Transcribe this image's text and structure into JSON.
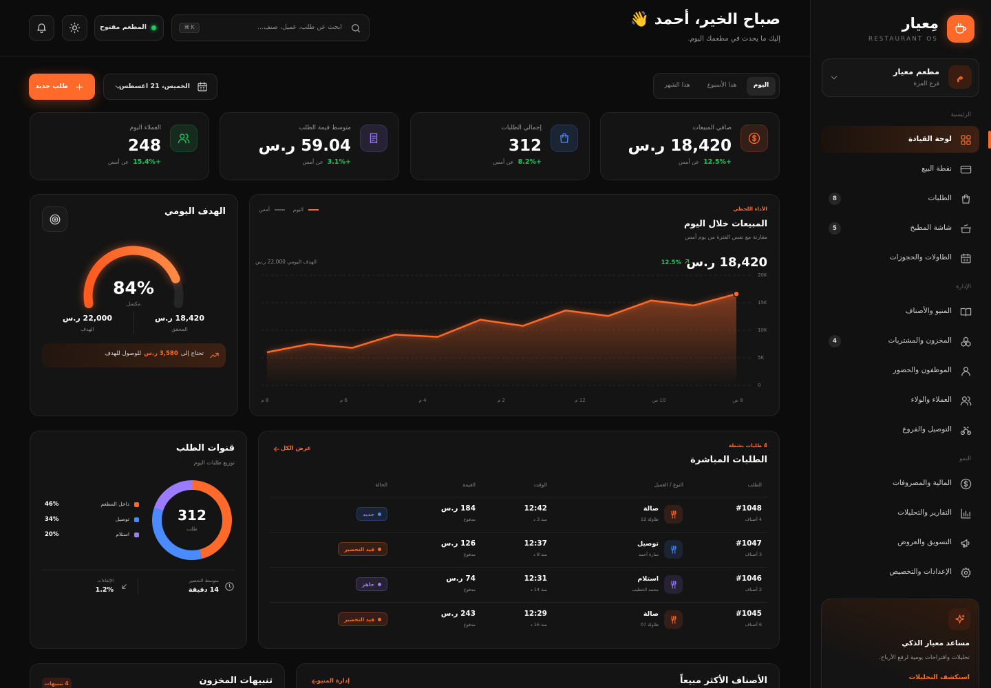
{
  "sidebar": {
    "brand": "مِعيار",
    "brand_sub": "RESTAURANT OS",
    "branch": {
      "initial": "م",
      "name": "مطعم معيار",
      "location": "فرع المزة"
    },
    "sections": [
      {
        "title": "الرئيسية",
        "items": [
          {
            "label": "لوحة القيادة",
            "active": true
          },
          {
            "label": "نقطة البيع"
          },
          {
            "label": "الطلبات",
            "badge": 8
          },
          {
            "label": "شاشة المطبخ",
            "badge": 5
          },
          {
            "label": "الطاولات والحجوزات"
          }
        ]
      },
      {
        "title": "الإدارة",
        "items": [
          {
            "label": "المنيو والأصناف"
          },
          {
            "label": "المخزون والمشتريات",
            "badge": 4
          },
          {
            "label": "الموظفون والحضور"
          },
          {
            "label": "العملاء والولاء"
          },
          {
            "label": "التوصيل والفروع"
          }
        ]
      },
      {
        "title": "النمو",
        "items": [
          {
            "label": "المالية والمصروفات"
          },
          {
            "label": "التقارير والتحليلات"
          },
          {
            "label": "التسويق والعروض"
          },
          {
            "label": "الإعدادات والتخصيص"
          }
        ]
      }
    ],
    "ai": {
      "title": "مساعد معيار الذكي",
      "text": "تحليلات واقتراحات يومية لرفع الأرباح.",
      "link": "استكشف التحليلات"
    }
  },
  "header": {
    "greeting": "صباح الخير، أحمد 👋",
    "subtitle": "إليك ما يحدث في مطعمك اليوم.",
    "search_placeholder": "ابحث عن طلب، عميل، صنف...",
    "shortcut": "⌘ K",
    "status": "المطعم مفتوح"
  },
  "toolbar": {
    "new_order": "طلب جديد",
    "date": "الخميس، 21 اغسطس",
    "tabs": [
      "اليوم",
      "هذا الأسبوع",
      "هذا الشهر"
    ],
    "active_tab": 0
  },
  "kpis": [
    {
      "label": "صافي المبيعات",
      "value": "18,420 ر.س",
      "change": "+12.5%",
      "note": "عن أمس",
      "color": "#ff6a2b"
    },
    {
      "label": "إجمالي الطلبات",
      "value": "312",
      "change": "+8.2%",
      "note": "عن أمس",
      "color": "#4a8cff"
    },
    {
      "label": "متوسط قيمة الطلب",
      "value": "59.04 ر.س",
      "change": "+3.1%",
      "note": "عن أمس",
      "color": "#9b7bff"
    },
    {
      "label": "العملاء اليوم",
      "value": "248",
      "change": "+15.4%",
      "note": "عن أمس",
      "color": "#22c55e"
    }
  ],
  "daily_goal": {
    "title": "الهدف اليومي",
    "progress": {
      "value": 84,
      "label": "84%"
    },
    "progress_caption": "مكتمل",
    "achieved": "18,420 ر.س",
    "achieved_label": "المحقق",
    "target": "22,000 ر.س",
    "target_label": "الهدف",
    "remaining_prefix": "تحتاج إلى",
    "remaining": "3,580 ر.س",
    "remaining_suffix": "للوصول للهدف"
  },
  "sales_chart": {
    "type": "area",
    "eyebrow": "الأداء اللحظي",
    "title": "المبيعات خلال اليوم",
    "subtitle": "مقارنة مع نفس الفترة من يوم أمس",
    "total": "18,420 ر.س",
    "change": "12.5%",
    "target_label": "الهدف اليومي 22,000 ر.س",
    "legend": [
      {
        "name": "اليوم",
        "color": "#ff6a2b"
      },
      {
        "name": "أمس",
        "color": "#555555"
      }
    ],
    "color": "#ff6a2b",
    "values": [
      6000,
      7500,
      6800,
      9200,
      8800,
      11900,
      10800,
      13600,
      12600,
      15400,
      14500,
      16600
    ],
    "x_labels": [
      "8 م",
      "6 م",
      "4 م",
      "2 م",
      "12 م",
      "10 ص",
      "8 ص"
    ],
    "ylim": [
      0,
      20000
    ],
    "yticks": [
      0,
      {
        "value": 5000,
        "label": "5K"
      },
      {
        "value": 10000,
        "label": "10K"
      },
      {
        "value": 15000,
        "label": "15K"
      },
      {
        "value": 20000,
        "label": "20K"
      }
    ],
    "grid": true
  },
  "channels": {
    "title": "قنوات الطلب",
    "subtitle": "توزيع طلبات اليوم",
    "total": 312,
    "total_caption": "طلب",
    "segments": [
      {
        "name": "داخل المطعم",
        "value": 46,
        "label": "46%",
        "color": "#ff6a2b"
      },
      {
        "name": "توصيل",
        "value": 34,
        "label": "34%",
        "color": "#4a8cff"
      },
      {
        "name": "استلام",
        "value": 20,
        "label": "20%",
        "color": "#9b7bff"
      }
    ],
    "stats": [
      {
        "label": "متوسط التحضير",
        "value": "14 دقيقة"
      },
      {
        "label": "الإلغاءات",
        "value": "1.2%"
      }
    ]
  },
  "live_orders": {
    "eyebrow": "4 طلبات نشطة",
    "title": "الطلبات المباشرة",
    "link": "عرض الكل",
    "columns": [
      "الطلب",
      "النوع / العميل",
      "الوقت",
      "القيمة",
      "الحالة"
    ],
    "rows": [
      {
        "id": "#1048",
        "items": "4 أصناف",
        "type": "صالة",
        "type_color": "#ff6a2b",
        "customer": "طاولة 12",
        "time": "12:42",
        "ago": "منذ 3 د",
        "amount": "184 ر.س",
        "payment": "مدفوع",
        "status": "جديد",
        "status_color": "#4a8cff"
      },
      {
        "id": "#1047",
        "items": "3 أصناف",
        "type": "توصيل",
        "type_color": "#4a8cff",
        "customer": "سارة أحمد",
        "time": "12:37",
        "ago": "منذ 8 د",
        "amount": "126 ر.س",
        "payment": "مدفوع",
        "status": "قيد التحضير",
        "status_color": "#ff6a2b"
      },
      {
        "id": "#1046",
        "items": "2 أصناف",
        "type": "استلام",
        "type_color": "#9b7bff",
        "customer": "محمد الخطيب",
        "time": "12:31",
        "ago": "منذ 14 د",
        "amount": "74 ر.س",
        "payment": "مدفوع",
        "status": "جاهز",
        "status_color": "#9b7bff"
      },
      {
        "id": "#1045",
        "items": "6 أصناف",
        "type": "صالة",
        "type_color": "#ff6a2b",
        "customer": "طاولة 07",
        "time": "12:29",
        "ago": "منذ 16 د",
        "amount": "243 ر.س",
        "payment": "مدفوع",
        "status": "قيد التحضير",
        "status_color": "#ff6a2b"
      }
    ]
  },
  "top_items": {
    "title": "الأصناف الأكثر مبيعاً",
    "link": "إدارة المنيو"
  },
  "inventory": {
    "title": "تنبيهات المخزون",
    "badge": "4 تنبيهات"
  }
}
